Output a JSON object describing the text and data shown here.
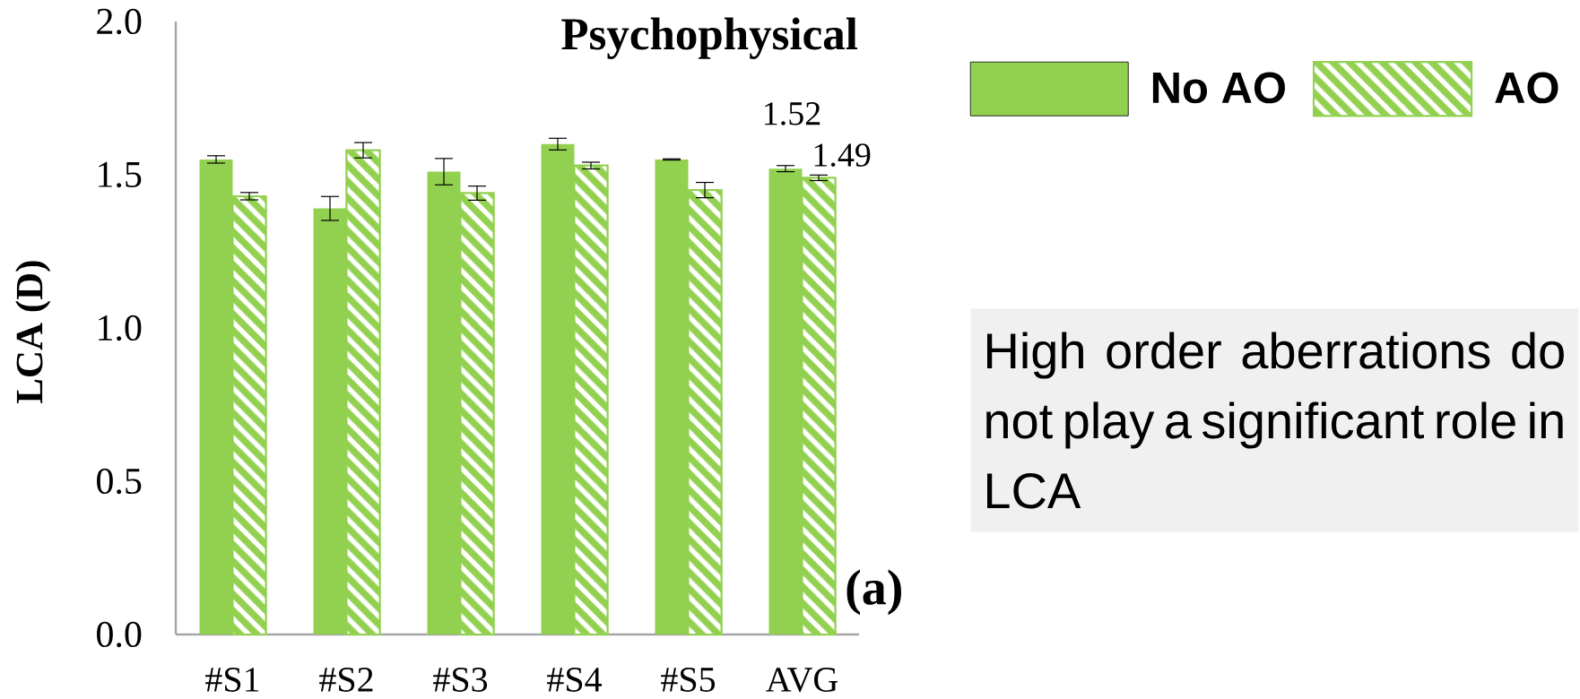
{
  "chart_data": {
    "type": "bar",
    "title": "Psychophysical",
    "ylabel": "LCA (D)",
    "categories": [
      "#S1",
      "#S2",
      "#S3",
      "#S4",
      "#S5",
      "AVG"
    ],
    "series": [
      {
        "name": "No AO",
        "color": "#92d050",
        "values": [
          1.55,
          1.39,
          1.51,
          1.6,
          1.55,
          1.52
        ],
        "errors": [
          0.012,
          0.039,
          0.043,
          0.019,
          0.002,
          0.01
        ],
        "value_labels": [
          null,
          null,
          null,
          null,
          null,
          "1.52"
        ]
      },
      {
        "name": "AO",
        "color": "#92d050",
        "values": [
          1.43,
          1.58,
          1.44,
          1.53,
          1.45,
          1.49
        ],
        "errors": [
          0.012,
          0.025,
          0.023,
          0.011,
          0.025,
          0.009
        ],
        "value_labels": [
          null,
          null,
          null,
          null,
          null,
          "1.49"
        ]
      }
    ],
    "ylim": [
      0,
      2
    ],
    "yticks": [
      {
        "value": 0,
        "label": "0.0"
      },
      {
        "value": 0.5,
        "label": "0.5"
      },
      {
        "value": 1,
        "label": "1.0"
      },
      {
        "value": 1.5,
        "label": "1.5"
      },
      {
        "value": 2,
        "label": "2.0"
      }
    ],
    "grid": false,
    "legend": "right",
    "annotations": [
      "(a)",
      "High order aberrations do not play a significant role in LCA"
    ]
  }
}
